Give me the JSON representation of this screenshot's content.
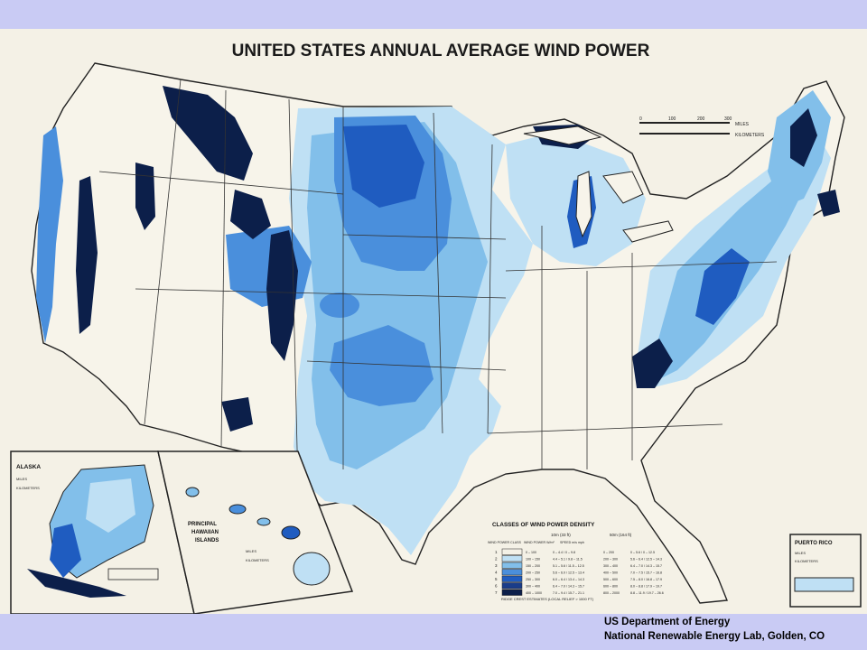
{
  "map": {
    "title": "UNITED STATES ANNUAL AVERAGE WIND POWER",
    "scale_bar": {
      "ticks": [
        "0",
        "100",
        "200",
        "300"
      ],
      "miles_label": "MILES",
      "km_label": "KILOMETERS"
    },
    "insets": {
      "alaska": {
        "title": "ALASKA",
        "scale_miles": [
          "0",
          "100",
          "200"
        ],
        "scale_km": [
          "0",
          "100",
          "200"
        ],
        "miles_label": "MILES",
        "km_label": "KILOMETERS"
      },
      "hawaii": {
        "title_line1": "PRINCIPAL",
        "title_line2": "HAWAIIAN",
        "title_line3": "ISLANDS",
        "scale_miles": [
          "0",
          "30",
          "60"
        ],
        "scale_km": [
          "0",
          "30",
          "60"
        ],
        "miles_label": "MILES",
        "km_label": "KILOMETERS"
      },
      "puerto_rico": {
        "title": "PUERTO RICO",
        "scale_miles": [
          "0",
          "20",
          "40"
        ],
        "scale_km": [
          "0",
          "20",
          "40"
        ],
        "miles_label": "MILES",
        "km_label": "KILOMETERS"
      }
    },
    "legend": {
      "title": "CLASSES OF WIND POWER DENSITY",
      "header_10m": "10m (33 ft)",
      "header_50m": "50m (164 ft)",
      "col_class": "WIND POWER CLASS",
      "col_power": "WIND POWER W/m²",
      "col_speed": "SPEED m/s mph",
      "rows": [
        {
          "class": "1",
          "p10": "0 – 100",
          "s10": "0 – 4.4 / 0 – 9.8",
          "p50": "0 – 200",
          "s50": "0 – 5.6 / 0 – 12.5",
          "color": "#f4f1e6"
        },
        {
          "class": "2",
          "p10": "100 – 150",
          "s10": "4.4 – 5.1 / 9.8 – 11.5",
          "p50": "200 – 300",
          "s50": "5.6 – 6.4 / 12.5 – 14.3",
          "color": "#bfe0f4"
        },
        {
          "class": "3",
          "p10": "150 – 200",
          "s10": "5.1 – 5.6 / 11.5 – 12.5",
          "p50": "300 – 400",
          "s50": "6.4 – 7.0 / 14.3 – 15.7",
          "color": "#82bfea"
        },
        {
          "class": "4",
          "p10": "200 – 250",
          "s10": "5.6 – 6.0 / 12.5 – 13.4",
          "p50": "400 – 500",
          "s50": "7.0 – 7.5 / 15.7 – 16.8",
          "color": "#4a8fdc"
        },
        {
          "class": "5",
          "p10": "250 – 300",
          "s10": "6.0 – 6.4 / 13.4 – 14.3",
          "p50": "500 – 600",
          "s50": "7.5 – 8.0 / 16.8 – 17.9",
          "color": "#1f5cc0"
        },
        {
          "class": "6",
          "p10": "300 – 400",
          "s10": "6.4 – 7.0 / 14.3 – 15.7",
          "p50": "600 – 800",
          "s50": "8.0 – 8.8 / 17.9 – 19.7",
          "color": "#1a3d8a"
        },
        {
          "class": "7",
          "p10": "400 – 1000",
          "s10": "7.0 – 9.4 / 15.7 – 21.1",
          "p50": "800 – 2000",
          "s50": "8.8 – 11.9 / 19.7 – 26.6",
          "color": "#0c1f4a"
        }
      ],
      "footnote": "RIDGE CREST ESTIMATES (LOCAL RELIEF > 1000 FT)"
    }
  },
  "credit": {
    "line1": "US Department  of Energy",
    "line2": "National Renewable Energy Lab, Golden, CO"
  }
}
